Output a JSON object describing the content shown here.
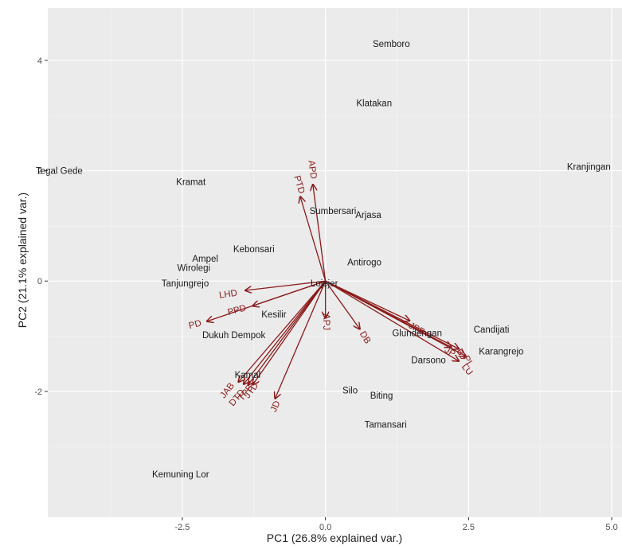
{
  "chart_data": {
    "type": "scatter",
    "subtype": "biplot",
    "title": "",
    "xlabel": "PC1 (26.8% explained var.)",
    "ylabel": "PC2 (21.1% explained var.)",
    "xlim": [
      -4.85,
      5.18
    ],
    "ylim": [
      -4.28,
      4.95
    ],
    "x_ticks": [
      -2.5,
      0.0,
      2.5,
      5.0
    ],
    "x_tick_labels": [
      "-2.5",
      "0.0",
      "2.5",
      "5.0"
    ],
    "y_ticks": [
      -2,
      0,
      2,
      4
    ],
    "y_tick_labels": [
      "-2",
      "0",
      "2",
      "4"
    ],
    "grid": true,
    "background": "#ebebeb",
    "point_label_color": "#1a1a1a",
    "arrow_color": "#8b1a1a",
    "points": [
      {
        "label": "Semboro",
        "x": 1.15,
        "y": 4.3
      },
      {
        "label": "Klatakan",
        "x": 0.85,
        "y": 3.23
      },
      {
        "label": "Tegal Gede",
        "x": -4.65,
        "y": 2.0
      },
      {
        "label": "Kranjingan",
        "x": 4.6,
        "y": 2.07
      },
      {
        "label": "Kramat",
        "x": -2.35,
        "y": 1.8
      },
      {
        "label": "Sumbersari",
        "x": 0.13,
        "y": 1.27
      },
      {
        "label": "Arjasa",
        "x": 0.75,
        "y": 1.2
      },
      {
        "label": "Kebonsari",
        "x": -1.25,
        "y": 0.58
      },
      {
        "label": "Ampel",
        "x": -2.1,
        "y": 0.41
      },
      {
        "label": "Wirolegi",
        "x": -2.3,
        "y": 0.24
      },
      {
        "label": "Antirogo",
        "x": 0.68,
        "y": 0.34
      },
      {
        "label": "Tanjungrejo",
        "x": -2.45,
        "y": -0.04
      },
      {
        "label": "Lojejer",
        "x": -0.02,
        "y": -0.04
      },
      {
        "label": "Kesilir",
        "x": -0.9,
        "y": -0.6
      },
      {
        "label": "Dukuh Dempok",
        "x": -1.6,
        "y": -0.98
      },
      {
        "label": "Candijati",
        "x": 2.9,
        "y": -0.88
      },
      {
        "label": "Glundengan",
        "x": 1.6,
        "y": -0.94
      },
      {
        "label": "Karangrejo",
        "x": 3.07,
        "y": -1.27
      },
      {
        "label": "Darsono",
        "x": 1.8,
        "y": -1.43
      },
      {
        "label": "Kamal",
        "x": -1.36,
        "y": -1.7
      },
      {
        "label": "Silo",
        "x": 0.43,
        "y": -1.98
      },
      {
        "label": "Biting",
        "x": 0.98,
        "y": -2.07
      },
      {
        "label": "Tamansari",
        "x": 1.05,
        "y": -2.6
      },
      {
        "label": "Kemuning Lor",
        "x": -2.53,
        "y": -3.5
      }
    ],
    "loadings": [
      {
        "label": "APD",
        "x": -0.22,
        "y": 1.75,
        "label_x": -0.22,
        "label_y": 2.02,
        "angle": 82
      },
      {
        "label": "PTD",
        "x": -0.44,
        "y": 1.53,
        "label_x": -0.45,
        "label_y": 1.75,
        "angle": 74
      },
      {
        "label": "LHD",
        "x": -1.4,
        "y": -0.17,
        "label_x": -1.7,
        "label_y": -0.23,
        "angle": -8
      },
      {
        "label": "PPD",
        "x": -1.27,
        "y": -0.45,
        "label_x": -1.55,
        "label_y": -0.52,
        "angle": -15
      },
      {
        "label": "PD",
        "x": -2.07,
        "y": -0.73,
        "label_x": -2.28,
        "label_y": -0.78,
        "angle": -15
      },
      {
        "label": "APJ",
        "x": 0.0,
        "y": -0.67,
        "label_x": 0.02,
        "label_y": -0.74,
        "angle": 90
      },
      {
        "label": "DB",
        "x": 0.6,
        "y": -0.87,
        "label_x": 0.7,
        "label_y": -1.02,
        "angle": 58
      },
      {
        "label": "JAB",
        "x": -1.52,
        "y": -1.83,
        "label_x": -1.72,
        "label_y": -1.98,
        "angle": -52
      },
      {
        "label": "DTD",
        "x": -1.43,
        "y": -1.87,
        "label_x": -1.55,
        "label_y": -2.11,
        "angle": -50
      },
      {
        "label": "TPB",
        "x": -1.35,
        "y": -1.88,
        "label_x": -1.4,
        "label_y": -2.02,
        "angle": -52
      },
      {
        "label": "JTD",
        "x": -1.27,
        "y": -1.88,
        "label_x": -1.3,
        "label_y": -1.98,
        "angle": -53
      },
      {
        "label": "JD",
        "x": -0.88,
        "y": -2.13,
        "label_x": -0.88,
        "label_y": -2.27,
        "angle": -66
      },
      {
        "label": "JPB",
        "x": 1.47,
        "y": -0.72,
        "label_x": 1.6,
        "label_y": -0.86,
        "angle": 28
      },
      {
        "label": "JP",
        "x": 2.2,
        "y": -1.2,
        "label_x": 2.18,
        "label_y": -1.28,
        "angle": 32
      },
      {
        "label": "BJ",
        "x": 2.33,
        "y": -1.23,
        "label_x": 2.38,
        "label_y": -1.32,
        "angle": 60
      },
      {
        "label": "PL",
        "x": 2.45,
        "y": -1.36,
        "label_x": 2.5,
        "label_y": -1.45,
        "angle": 58
      },
      {
        "label": "LU",
        "x": 2.33,
        "y": -1.45,
        "label_x": 2.48,
        "label_y": -1.6,
        "angle": 50
      }
    ]
  }
}
